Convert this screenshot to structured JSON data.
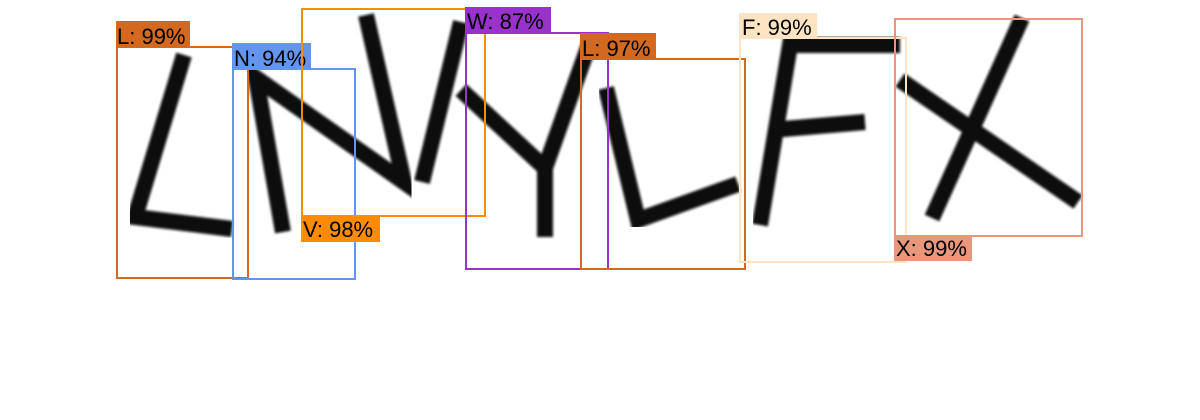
{
  "detections": [
    {
      "label": "L: 99%",
      "color": "#d2691e"
    },
    {
      "label": "N: 94%",
      "color": "#6495ed"
    },
    {
      "label": "V: 98%",
      "color": "#ff8c00"
    },
    {
      "label": "W: 87%",
      "color": "#9932cc"
    },
    {
      "label": "L: 97%",
      "color": "#d2691e"
    },
    {
      "label": "F: 99%",
      "color": "#ffe4c4"
    },
    {
      "label": "X: 99%",
      "color": "#e9967a"
    }
  ]
}
